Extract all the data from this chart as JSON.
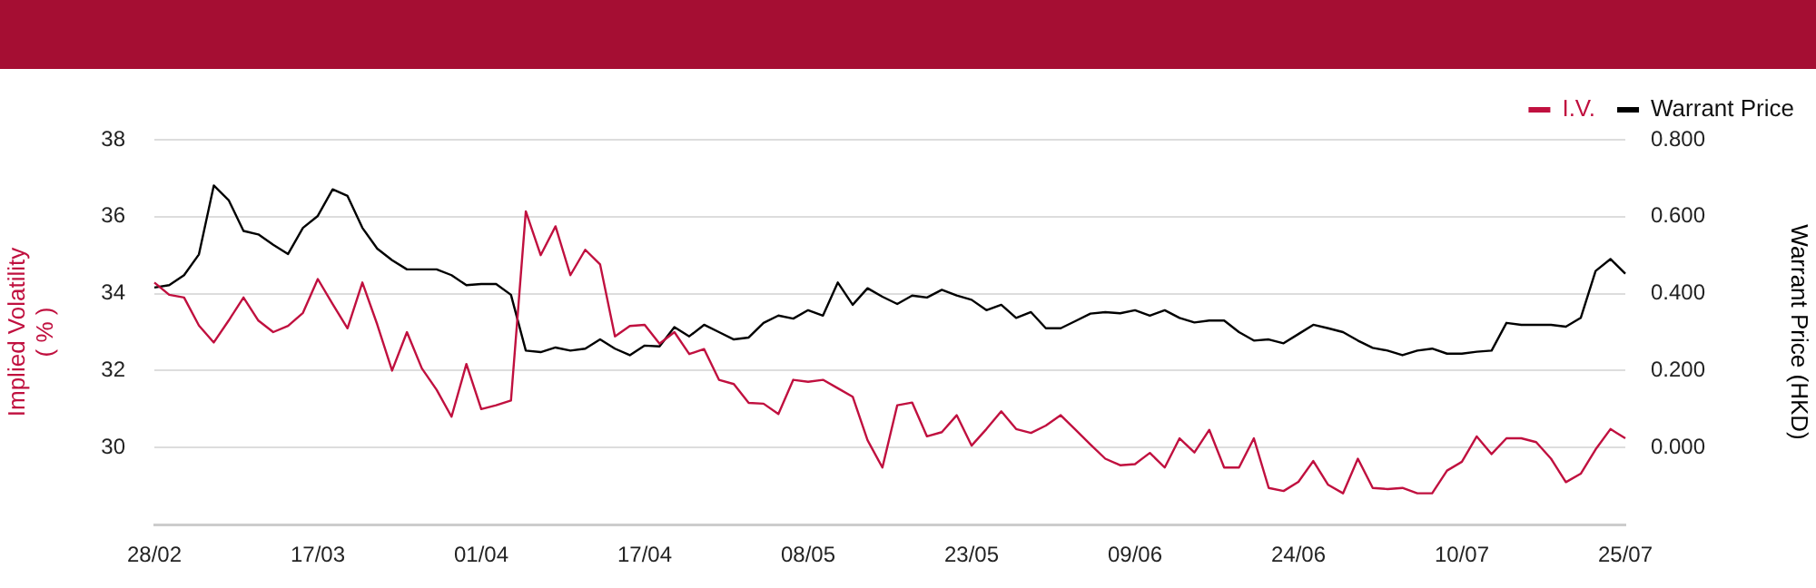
{
  "chart_data": {
    "type": "line",
    "categories": [
      "28/02",
      null,
      null,
      null,
      null,
      null,
      null,
      null,
      null,
      null,
      null,
      "17/03",
      null,
      null,
      null,
      null,
      null,
      null,
      null,
      null,
      null,
      null,
      "01/04",
      null,
      null,
      null,
      null,
      null,
      null,
      null,
      null,
      null,
      null,
      "17/04",
      null,
      null,
      null,
      null,
      null,
      null,
      null,
      null,
      null,
      null,
      "08/05",
      null,
      null,
      null,
      null,
      null,
      null,
      null,
      null,
      null,
      null,
      "23/05",
      null,
      null,
      null,
      null,
      null,
      null,
      null,
      null,
      null,
      null,
      "09/06",
      null,
      null,
      null,
      null,
      null,
      null,
      null,
      null,
      null,
      null,
      "24/06",
      null,
      null,
      null,
      null,
      null,
      null,
      null,
      null,
      null,
      null,
      "10/07",
      null,
      null,
      null,
      null,
      null,
      null,
      null,
      null,
      null,
      null,
      "25/07"
    ],
    "series": [
      {
        "name": "I.V.",
        "color": "#c0103f",
        "values": [
          34.29,
          33.97,
          33.9,
          33.17,
          32.73,
          33.3,
          33.9,
          33.3,
          33.0,
          33.16,
          33.5,
          34.38,
          33.73,
          33.1,
          34.29,
          33.2,
          32.0,
          33.0,
          32.06,
          31.5,
          30.8,
          32.17,
          31.0,
          31.1,
          31.22,
          36.14,
          35.0,
          35.75,
          34.48,
          35.14,
          34.76,
          32.89,
          33.16,
          33.19,
          32.7,
          33.0,
          32.43,
          32.56,
          31.76,
          31.65,
          31.16,
          31.14,
          30.87,
          31.76,
          31.71,
          31.76,
          31.54,
          31.32,
          30.19,
          29.48,
          31.1,
          31.17,
          30.29,
          30.4,
          30.84,
          30.05,
          30.48,
          30.94,
          30.48,
          30.38,
          30.57,
          30.84,
          30.46,
          30.08,
          29.71,
          29.54,
          29.57,
          29.86,
          29.48,
          30.24,
          29.87,
          30.46,
          29.48,
          29.48,
          30.24,
          28.95,
          28.87,
          29.11,
          29.65,
          29.03,
          28.81,
          29.71,
          28.95,
          28.92,
          28.95,
          28.81,
          28.81,
          29.4,
          29.63,
          30.29,
          29.83,
          30.24,
          30.24,
          30.14,
          29.71,
          29.1,
          29.32,
          29.95,
          30.48,
          30.24
        ]
      },
      {
        "name": "Warrant Price",
        "color": "#000000",
        "axis": "y2",
        "values": [
          0.416,
          0.422,
          0.448,
          0.502,
          0.681,
          0.643,
          0.563,
          0.554,
          0.527,
          0.503,
          0.571,
          0.602,
          0.671,
          0.654,
          0.571,
          0.517,
          0.487,
          0.463,
          0.463,
          0.463,
          0.448,
          0.422,
          0.425,
          0.425,
          0.397,
          0.252,
          0.248,
          0.26,
          0.252,
          0.257,
          0.281,
          0.257,
          0.24,
          0.265,
          0.263,
          0.313,
          0.289,
          0.319,
          0.3,
          0.281,
          0.286,
          0.324,
          0.343,
          0.335,
          0.357,
          0.343,
          0.429,
          0.371,
          0.414,
          0.392,
          0.373,
          0.395,
          0.39,
          0.41,
          0.395,
          0.384,
          0.357,
          0.371,
          0.337,
          0.352,
          0.31,
          0.31,
          0.329,
          0.348,
          0.352,
          0.349,
          0.357,
          0.343,
          0.357,
          0.337,
          0.325,
          0.33,
          0.33,
          0.3,
          0.278,
          0.281,
          0.271,
          0.295,
          0.319,
          0.31,
          0.3,
          0.278,
          0.259,
          0.252,
          0.24,
          0.252,
          0.257,
          0.244,
          0.244,
          0.249,
          0.252,
          0.324,
          0.319,
          0.319,
          0.319,
          0.314,
          0.337,
          0.459,
          0.49,
          0.452
        ]
      }
    ],
    "ylabel": "Implied Volatility\n( % )",
    "y2label": "Warrant Price (HKD)",
    "ylim": [
      28,
      38
    ],
    "yticks": [
      30,
      32,
      34,
      36,
      38
    ],
    "y2lim": [
      -0.2,
      0.8
    ],
    "y2ticks": [
      {
        "value": 0,
        "label": "0.000"
      },
      {
        "value": 0.2,
        "label": "0.200"
      },
      {
        "value": 0.4,
        "label": "0.400"
      },
      {
        "value": 0.6,
        "label": "0.600"
      },
      {
        "value": 0.8,
        "label": "0.800"
      }
    ],
    "grid": "y",
    "legend": "top right",
    "marker": "none",
    "line_style": "solid"
  }
}
